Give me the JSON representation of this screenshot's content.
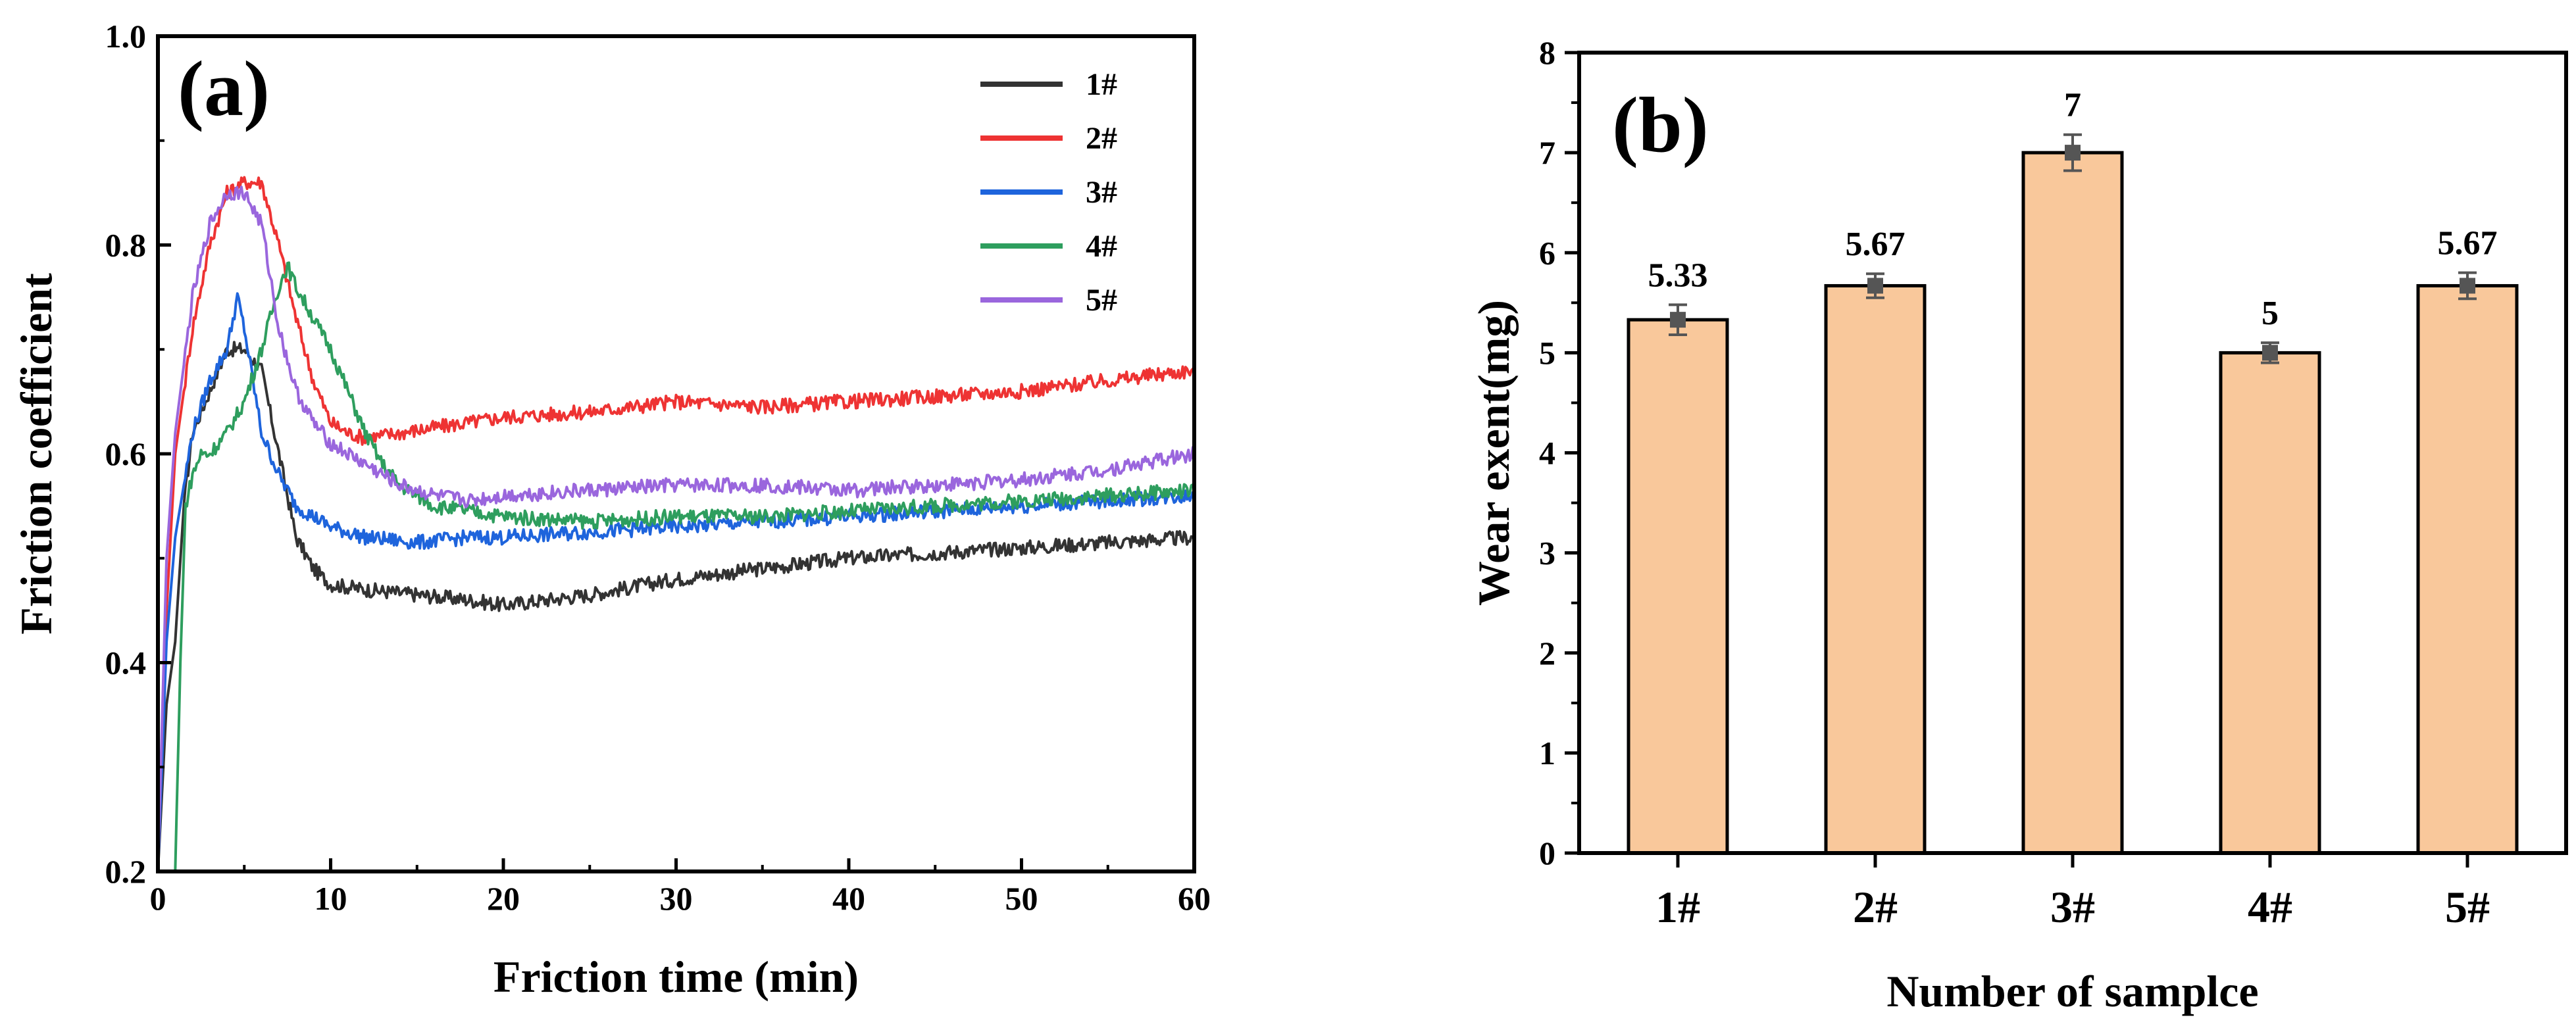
{
  "chart_data": [
    {
      "type": "line",
      "panel": "(a)",
      "xlabel": "Friction time (min)",
      "ylabel": "Friction coefficient",
      "xlim": [
        0,
        60
      ],
      "ylim": [
        0.2,
        1.0
      ],
      "xticks": [
        0,
        10,
        20,
        30,
        40,
        50,
        60
      ],
      "yticks": [
        0.2,
        0.4,
        0.6,
        0.8,
        1.0
      ],
      "ytick_labels": [
        "0.2",
        "0.4",
        "0.6",
        "0.8",
        "1.0"
      ],
      "legend_position": "top-right",
      "series": [
        {
          "name": "1#",
          "color": "#333333",
          "x": [
            0,
            0.5,
            1,
            1.5,
            2,
            3,
            4,
            5,
            6,
            7,
            8,
            9,
            10,
            12,
            15,
            18,
            20,
            25,
            30,
            35,
            40,
            45,
            50,
            55,
            60
          ],
          "y": [
            0.2,
            0.36,
            0.42,
            0.55,
            0.62,
            0.66,
            0.7,
            0.7,
            0.68,
            0.6,
            0.52,
            0.49,
            0.475,
            0.47,
            0.465,
            0.46,
            0.455,
            0.465,
            0.48,
            0.49,
            0.5,
            0.505,
            0.51,
            0.515,
            0.52
          ]
        },
        {
          "name": "2#",
          "color": "#ee3333",
          "x": [
            0,
            0.5,
            1,
            2,
            3,
            4,
            5,
            6,
            7,
            8,
            9,
            10,
            11,
            12,
            14,
            16,
            18,
            20,
            25,
            30,
            35,
            40,
            45,
            50,
            55,
            60
          ],
          "y": [
            0.2,
            0.45,
            0.6,
            0.72,
            0.8,
            0.85,
            0.86,
            0.86,
            0.8,
            0.73,
            0.67,
            0.63,
            0.62,
            0.615,
            0.62,
            0.625,
            0.63,
            0.635,
            0.64,
            0.65,
            0.645,
            0.65,
            0.655,
            0.66,
            0.67,
            0.68
          ]
        },
        {
          "name": "3#",
          "color": "#1e64dc",
          "x": [
            0,
            0.5,
            1,
            2,
            3,
            4,
            4.6,
            5,
            6,
            7,
            8,
            10,
            12,
            15,
            18,
            20,
            25,
            30,
            35,
            40,
            45,
            50,
            55,
            60
          ],
          "y": [
            0.2,
            0.42,
            0.52,
            0.62,
            0.67,
            0.7,
            0.75,
            0.72,
            0.62,
            0.58,
            0.55,
            0.53,
            0.52,
            0.515,
            0.52,
            0.52,
            0.525,
            0.53,
            0.535,
            0.54,
            0.545,
            0.55,
            0.555,
            0.56
          ]
        },
        {
          "name": "4#",
          "color": "#2e9e5e",
          "x": [
            0,
            1,
            1.3,
            1.6,
            2,
            2.5,
            3,
            4,
            5,
            6,
            7,
            7.5,
            8,
            9,
            10,
            11,
            12,
            13,
            14,
            16,
            18,
            20,
            25,
            30,
            35,
            40,
            45,
            50,
            55,
            60
          ],
          "y": [
            0.2,
            0.2,
            0.4,
            0.55,
            0.58,
            0.6,
            0.6,
            0.62,
            0.65,
            0.7,
            0.76,
            0.78,
            0.76,
            0.73,
            0.7,
            0.66,
            0.62,
            0.59,
            0.57,
            0.55,
            0.545,
            0.54,
            0.535,
            0.54,
            0.54,
            0.545,
            0.55,
            0.555,
            0.56,
            0.565
          ]
        },
        {
          "name": "5#",
          "color": "#9a66dd",
          "x": [
            0,
            0.5,
            1,
            2,
            3,
            4,
            5,
            6,
            7,
            8,
            9,
            10,
            12,
            14,
            16,
            18,
            20,
            25,
            30,
            35,
            40,
            45,
            50,
            55,
            60
          ],
          "y": [
            0.2,
            0.5,
            0.62,
            0.75,
            0.82,
            0.85,
            0.85,
            0.82,
            0.72,
            0.66,
            0.63,
            0.61,
            0.59,
            0.57,
            0.56,
            0.555,
            0.56,
            0.565,
            0.57,
            0.57,
            0.565,
            0.57,
            0.575,
            0.585,
            0.6
          ]
        }
      ]
    },
    {
      "type": "bar",
      "panel": "(b)",
      "xlabel": "Number of samplce",
      "ylabel": "Wear exent(mg)",
      "categories": [
        "1#",
        "2#",
        "3#",
        "4#",
        "5#"
      ],
      "values": [
        5.33,
        5.67,
        7,
        5,
        5.67
      ],
      "value_labels": [
        "5.33",
        "5.67",
        "7",
        "5",
        "5.67"
      ],
      "errors": [
        0.15,
        0.12,
        0.18,
        0.1,
        0.13
      ],
      "ylim": [
        0,
        8
      ],
      "yticks": [
        0,
        1,
        2,
        3,
        4,
        5,
        6,
        7,
        8
      ],
      "bar_color": "#f9c89b",
      "error_color": "#555555"
    }
  ]
}
